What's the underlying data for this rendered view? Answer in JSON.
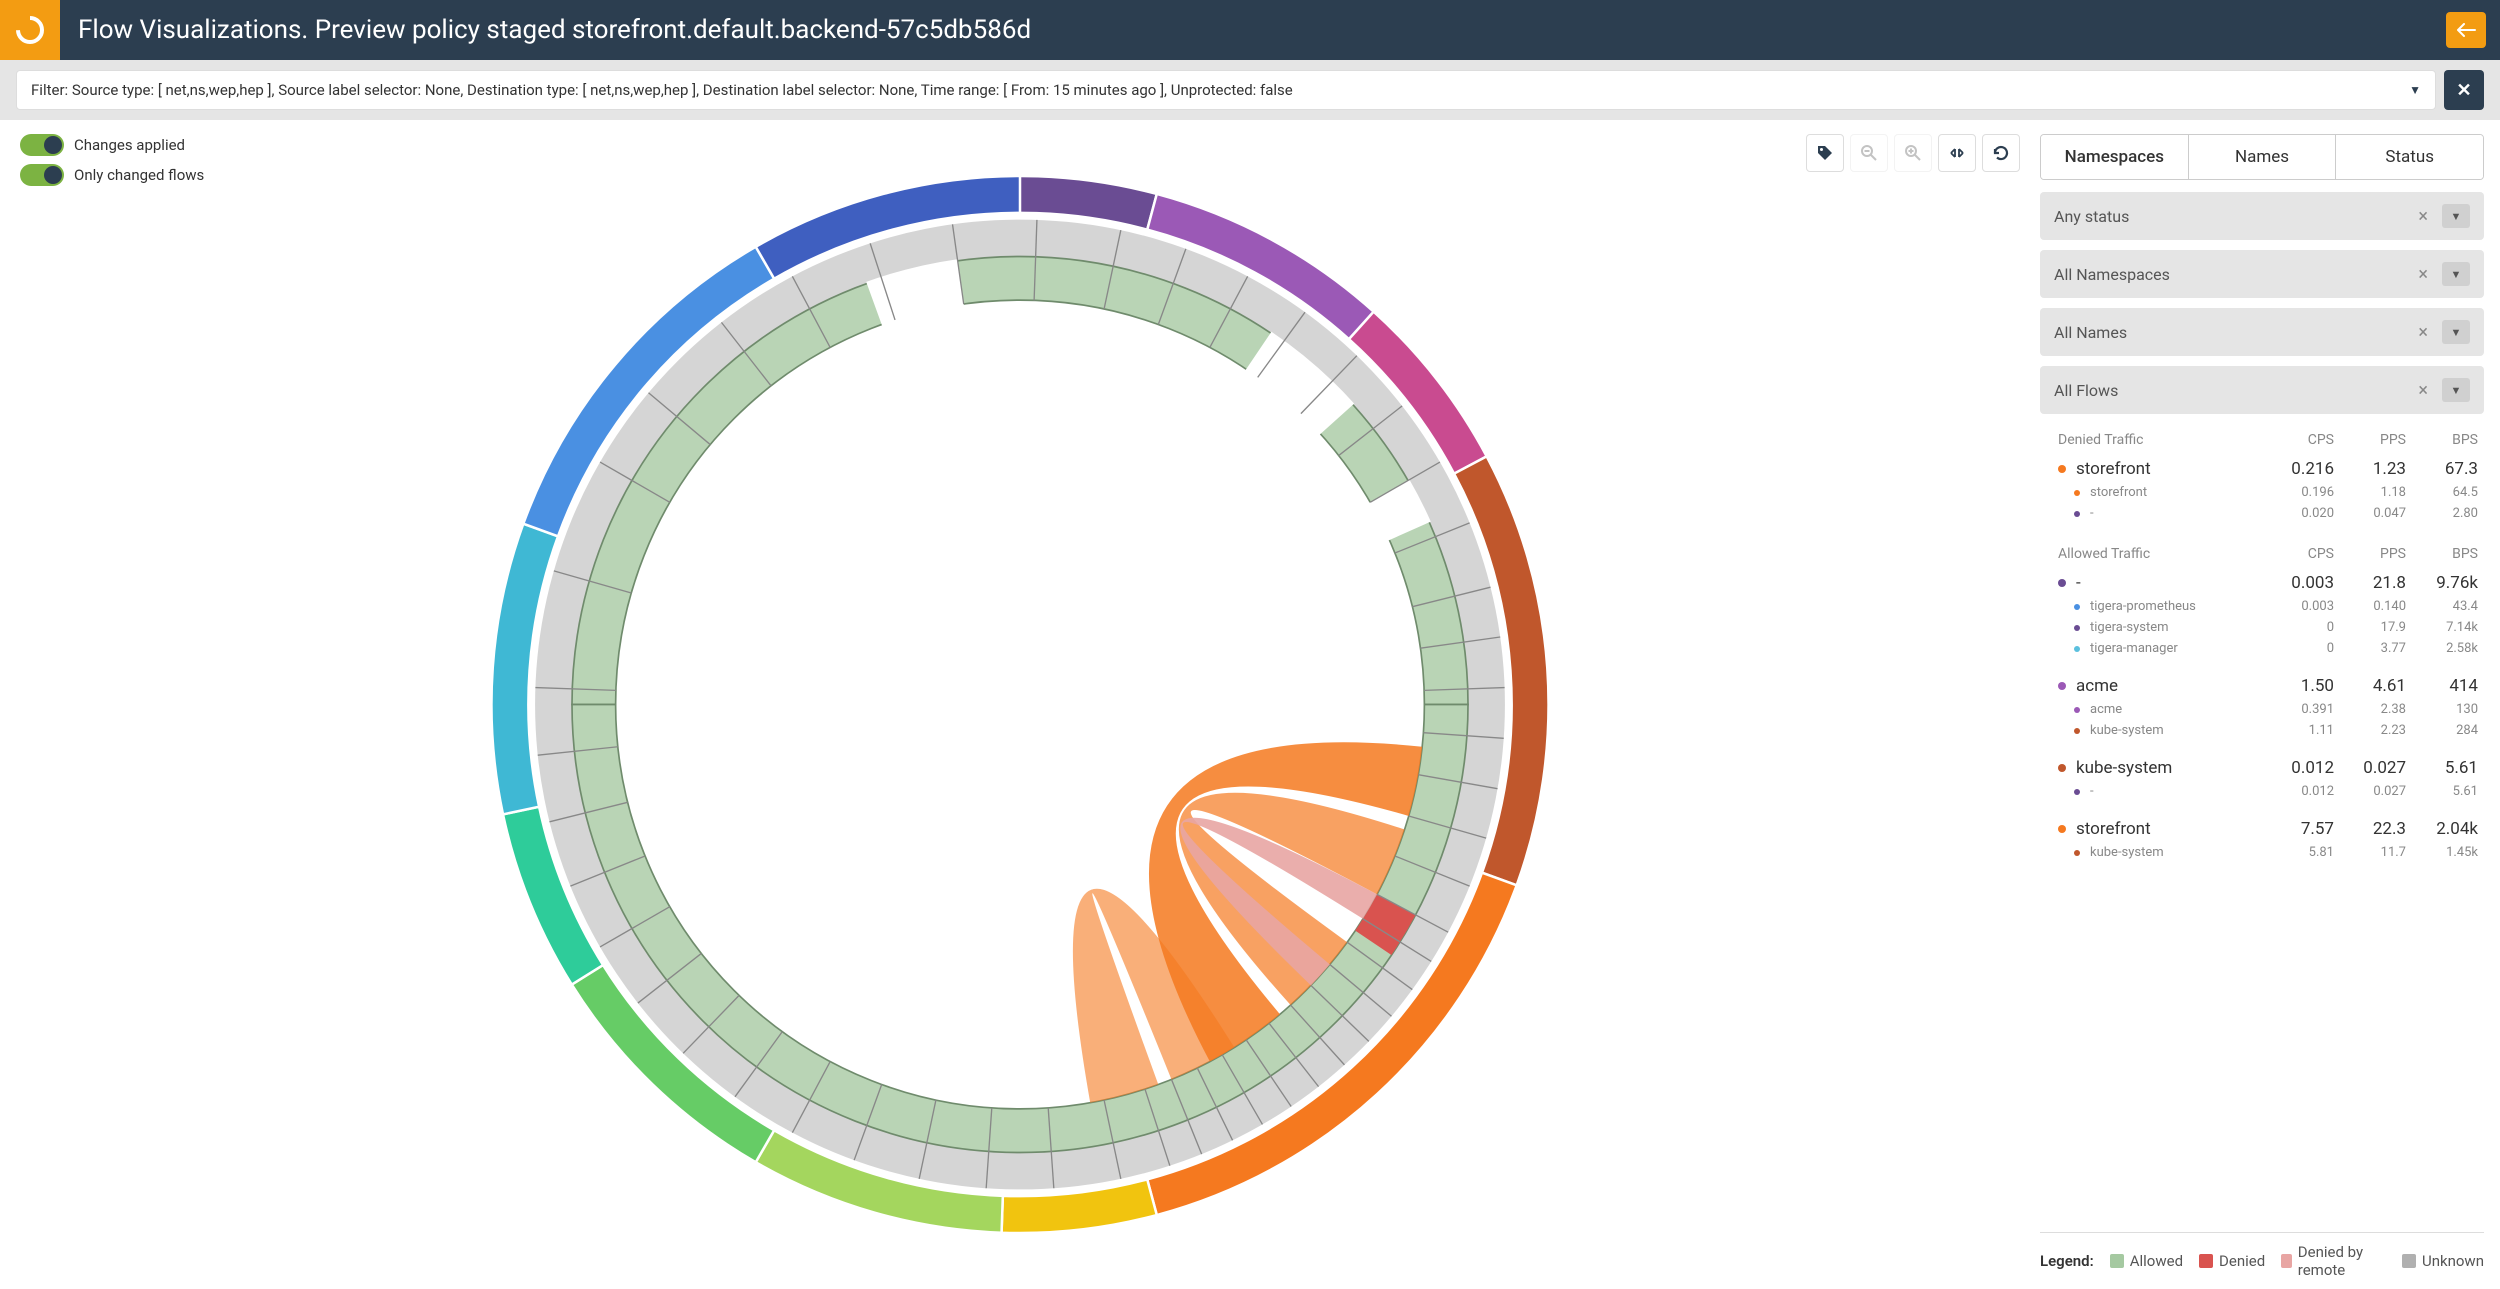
{
  "header": {
    "title": "Flow Visualizations. Preview policy staged storefront.default.backend-57c5db586d"
  },
  "filter": {
    "text": "Filter: Source type: [ net,ns,wep,hep ], Source label selector: None, Destination type: [ net,ns,wep,hep ], Destination label selector: None, Time range: [ From: 15 minutes ago ], Unprotected: false"
  },
  "toggles": {
    "changes_applied": "Changes applied",
    "only_changed": "Only changed flows"
  },
  "tabs": {
    "namespaces": "Namespaces",
    "names": "Names",
    "status": "Status",
    "active": "namespaces"
  },
  "dropdowns": {
    "status": "Any status",
    "namespaces": "All Namespaces",
    "names": "All Names",
    "flows": "All Flows"
  },
  "columns": {
    "c1": "CPS",
    "c2": "PPS",
    "c3": "BPS"
  },
  "sections": [
    {
      "title": "Denied Traffic",
      "groups": [
        {
          "name": "storefront",
          "color": "#f5791f",
          "cps": "0.216",
          "pps": "1.23",
          "bps": "67.3",
          "children": [
            {
              "name": "storefront",
              "color": "#f5791f",
              "cps": "0.196",
              "pps": "1.18",
              "bps": "64.5"
            },
            {
              "name": "-",
              "color": "#6a4c93",
              "cps": "0.020",
              "pps": "0.047",
              "bps": "2.80"
            }
          ]
        }
      ]
    },
    {
      "title": "Allowed Traffic",
      "groups": [
        {
          "name": "-",
          "color": "#6a4c93",
          "cps": "0.003",
          "pps": "21.8",
          "bps": "9.76k",
          "children": [
            {
              "name": "tigera-prometheus",
              "color": "#4a90e2",
              "cps": "0.003",
              "pps": "0.140",
              "bps": "43.4"
            },
            {
              "name": "tigera-system",
              "color": "#6a4c93",
              "cps": "0",
              "pps": "17.9",
              "bps": "7.14k"
            },
            {
              "name": "tigera-manager",
              "color": "#5bc0de",
              "cps": "0",
              "pps": "3.77",
              "bps": "2.58k"
            }
          ]
        },
        {
          "name": "acme",
          "color": "#9b59b6",
          "cps": "1.50",
          "pps": "4.61",
          "bps": "414",
          "children": [
            {
              "name": "acme",
              "color": "#9b59b6",
              "cps": "0.391",
              "pps": "2.38",
              "bps": "130"
            },
            {
              "name": "kube-system",
              "color": "#c0572c",
              "cps": "1.11",
              "pps": "2.23",
              "bps": "284"
            }
          ]
        },
        {
          "name": "kube-system",
          "color": "#c0572c",
          "cps": "0.012",
          "pps": "0.027",
          "bps": "5.61",
          "children": [
            {
              "name": "-",
              "color": "#6a4c93",
              "cps": "0.012",
              "pps": "0.027",
              "bps": "5.61"
            }
          ]
        },
        {
          "name": "storefront",
          "color": "#f5791f",
          "cps": "7.57",
          "pps": "22.3",
          "bps": "2.04k",
          "children": [
            {
              "name": "kube-system",
              "color": "#c0572c",
              "cps": "5.81",
              "pps": "11.7",
              "bps": "1.45k"
            }
          ]
        }
      ]
    }
  ],
  "legend": {
    "label": "Legend:",
    "items": [
      {
        "label": "Allowed",
        "color": "#a5c9a1"
      },
      {
        "label": "Denied",
        "color": "#d9534f"
      },
      {
        "label": "Denied by remote",
        "color": "#e8a5a3"
      },
      {
        "label": "Unknown",
        "color": "#b0b0b0"
      }
    ]
  },
  "chord": {
    "background": "#ffffff",
    "outer_radius": 315,
    "ring_outer_width": 22,
    "gap_width": 4,
    "ring_middle_width": 22,
    "ring_inner_width": 26,
    "middle_fill": "#d5d5d5",
    "inner_fill": "#b9d4b5",
    "inner_stroke": "#6f8b6c",
    "outer_segments": [
      {
        "start": -90,
        "end": -38,
        "color": "#3f5fc0"
      },
      {
        "start": -38,
        "end": 15,
        "color": "#6a4c93"
      },
      {
        "start": 15,
        "end": 42,
        "color": "#9b59b6"
      },
      {
        "start": 42,
        "end": 62,
        "color": "#c94b90"
      },
      {
        "start": 62,
        "end": 110,
        "color": "#c0572c"
      },
      {
        "start": 110,
        "end": 165,
        "color": "#f5791f"
      },
      {
        "start": 165,
        "end": 182,
        "color": "#f1c40f"
      },
      {
        "start": 182,
        "end": 210,
        "color": "#a4d65e"
      },
      {
        "start": 210,
        "end": 238,
        "color": "#66cc66"
      },
      {
        "start": 238,
        "end": 258,
        "color": "#2ecc9a"
      },
      {
        "start": 258,
        "end": 290,
        "color": "#3fb8d4"
      },
      {
        "start": 290,
        "end": 330,
        "color": "#4a90e2"
      },
      {
        "start": 330,
        "end": 360,
        "color": "#3f5fc0"
      }
    ],
    "inner_divisions": [
      -88,
      -74,
      -60,
      -50,
      -38,
      -28,
      -18,
      -8,
      2,
      12,
      20,
      28,
      36,
      44,
      52,
      60,
      68,
      76,
      82,
      88,
      94,
      100,
      106,
      112,
      118,
      122,
      126,
      130,
      134,
      138,
      142,
      146,
      150,
      154,
      158,
      162,
      168,
      176,
      184,
      192,
      200,
      208,
      216,
      224,
      232,
      240,
      248,
      256,
      264
    ],
    "inner_white_gaps": [
      {
        "start": -20,
        "end": -8
      },
      {
        "start": 34,
        "end": 48
      },
      {
        "start": 60,
        "end": 66
      }
    ],
    "inner_red_segment": {
      "start": 118,
      "end": 124,
      "color": "#d9534f"
    },
    "ribbons": [
      {
        "a0": 96,
        "a1": 106,
        "b0": 140,
        "b1": 152,
        "color": "#f5791f",
        "opacity": 0.85
      },
      {
        "a0": 108,
        "a1": 118,
        "b0": 126,
        "b1": 138,
        "color": "#f5791f",
        "opacity": 0.7
      },
      {
        "a0": 118,
        "a1": 122,
        "b0": 130,
        "b1": 134,
        "color": "#e8a5a3",
        "opacity": 0.9
      },
      {
        "a0": 148,
        "a1": 158,
        "b0": 160,
        "b1": 170,
        "color": "#f5791f",
        "opacity": 0.6
      }
    ]
  }
}
